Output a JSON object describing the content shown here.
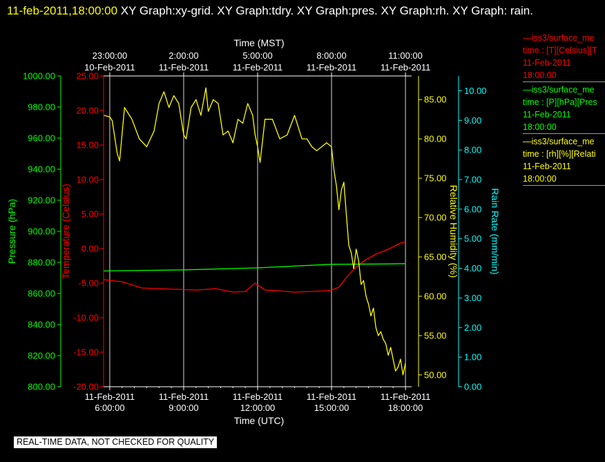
{
  "header": {
    "timestamp": "11-feb-2011,18:00:00",
    "rest": "  XY Graph:xy-grid.  XY Graph:tdry.  XY Graph:pres.  XY Graph:rh.  XY Graph: rain."
  },
  "notice": "REAL-TIME DATA, NOT CHECKED FOR QUALITY",
  "legend": [
    {
      "line1": "—iss3/surface_me",
      "line2": "time : [T][Celsius][T",
      "date": "11-Feb-2011",
      "time": "18:00:00",
      "color": "#ff0000"
    },
    {
      "line1": "—iss3/surface_me",
      "line2": "time : [P][hPa][Pres",
      "date": "11-Feb-2011",
      "time": "18:00:00",
      "color": "#00ff00"
    },
    {
      "line1": "—iss3/surface_me",
      "line2": "time : [rh][%][Relati",
      "date": "11-Feb-2011",
      "time": "18:00:00",
      "color": "#ffff00"
    }
  ],
  "colors": {
    "temperature": "#ff0000",
    "pressure": "#00ff00",
    "humidity": "#ffff00",
    "rain": "#00ffff",
    "grid": "#ffffff"
  },
  "chart_data": {
    "type": "line",
    "x_bottom": {
      "label": "Time (UTC)",
      "range_hours_utc": [
        5.75,
        18.25
      ],
      "ticks": [
        {
          "value": 6,
          "date": "11-Feb-2011",
          "time": "6:00:00"
        },
        {
          "value": 9,
          "date": "11-Feb-2011",
          "time": "9:00:00"
        },
        {
          "value": 12,
          "date": "11-Feb-2011",
          "time": "12:00:00"
        },
        {
          "value": 15,
          "date": "11-Feb-2011",
          "time": "15:00:00"
        },
        {
          "value": 18,
          "date": "11-Feb-2011",
          "time": "18:00:00"
        }
      ]
    },
    "x_top": {
      "label": "Time (MST)",
      "ticks": [
        {
          "value": 6,
          "time": "23:00:00",
          "date": "10-Feb-2011"
        },
        {
          "value": 9,
          "time": "2:00:00",
          "date": "11-Feb-2011"
        },
        {
          "value": 12,
          "time": "5:00:00",
          "date": "11-Feb-2011"
        },
        {
          "value": 15,
          "time": "8:00:00",
          "date": "11-Feb-2011"
        },
        {
          "value": 18,
          "time": "11:00:00",
          "date": "11-Feb-2011"
        }
      ]
    },
    "axes": {
      "pressure": {
        "label": "Pressure (hPa)",
        "range": [
          800,
          1000
        ],
        "ticks": [
          "800.00",
          "820.00",
          "840.00",
          "860.00",
          "880.00",
          "900.00",
          "920.00",
          "940.00",
          "960.00",
          "980.00",
          "1000.00"
        ]
      },
      "temperature": {
        "label": "Temperature (Celsius)",
        "range": [
          -20,
          25
        ],
        "ticks": [
          "-20.00",
          "-15.00",
          "-10.00",
          "-5.00",
          "0.00",
          "5.00",
          "10.00",
          "15.00",
          "20.00",
          "25.00"
        ]
      },
      "humidity": {
        "label": "Relative Humidity (%)",
        "range": [
          48.5,
          88
        ],
        "ticks": [
          "50.00",
          "55.00",
          "60.00",
          "65.00",
          "70.00",
          "75.00",
          "80.00",
          "85.00"
        ]
      },
      "rain": {
        "label": "Rain Rate (mm/min)",
        "range": [
          0,
          10.5
        ],
        "ticks": [
          "0.00",
          "1.00",
          "2.00",
          "3.00",
          "4.00",
          "5.00",
          "6.00",
          "7.00",
          "8.00",
          "9.00",
          "10.00"
        ]
      }
    },
    "grid": true,
    "series": [
      {
        "axis": "temperature",
        "x": [
          5.75,
          6.5,
          7.3,
          8.0,
          8.8,
          9.5,
          10.3,
          11.0,
          11.5,
          11.9,
          12.3,
          12.8,
          13.5,
          14.2,
          14.8,
          15.0,
          15.3,
          15.6,
          15.9,
          16.3,
          16.8,
          17.3,
          17.8,
          18.0
        ],
        "y": [
          -4.5,
          -4.8,
          -5.7,
          -5.8,
          -5.9,
          -6.0,
          -5.8,
          -6.3,
          -6.2,
          -5.0,
          -6.0,
          -6.1,
          -6.3,
          -6.2,
          -6.1,
          -6.0,
          -5.6,
          -4.2,
          -3.0,
          -1.8,
          -0.8,
          -0.1,
          0.8,
          1.0
        ]
      },
      {
        "axis": "pressure",
        "x": [
          5.75,
          9.0,
          12.0,
          15.0,
          17.0,
          18.0
        ],
        "y": [
          874.5,
          875.2,
          876.5,
          878.8,
          879.0,
          879.2
        ]
      },
      {
        "axis": "humidity",
        "x": [
          5.75,
          6.0,
          6.1,
          6.3,
          6.4,
          6.6,
          6.9,
          7.2,
          7.5,
          7.8,
          8.0,
          8.2,
          8.4,
          8.6,
          8.8,
          9.0,
          9.1,
          9.3,
          9.5,
          9.7,
          9.9,
          10.0,
          10.2,
          10.4,
          10.6,
          10.8,
          11.0,
          11.2,
          11.4,
          11.6,
          11.8,
          11.9,
          12.0,
          12.1,
          12.3,
          12.6,
          12.9,
          13.2,
          13.5,
          13.8,
          14.0,
          14.2,
          14.4,
          14.6,
          14.8,
          15.0,
          15.1,
          15.2,
          15.3,
          15.4,
          15.5,
          15.6,
          15.7,
          15.8,
          15.9,
          16.0,
          16.1,
          16.2,
          16.3,
          16.4,
          16.5,
          16.6,
          16.7,
          16.8,
          16.9,
          17.0,
          17.1,
          17.2,
          17.3,
          17.4,
          17.5,
          17.6,
          17.7,
          17.8,
          17.9,
          18.0
        ],
        "y": [
          83.0,
          82.8,
          82.3,
          78.2,
          77.2,
          84.0,
          82.5,
          80.0,
          79.0,
          81.0,
          84.5,
          86.0,
          84.0,
          85.5,
          84.5,
          80.5,
          80.0,
          84.0,
          85.0,
          83.0,
          86.5,
          83.5,
          85.0,
          84.5,
          80.5,
          81.0,
          79.5,
          82.5,
          82.0,
          84.5,
          83.0,
          80.5,
          79.0,
          77.0,
          82.5,
          82.5,
          80.0,
          80.5,
          83.0,
          80.0,
          80.0,
          79.0,
          78.5,
          79.0,
          79.5,
          79.0,
          76.0,
          74.0,
          71.0,
          73.5,
          74.5,
          70.5,
          66.5,
          65.5,
          63.5,
          66.0,
          64.5,
          61.5,
          62.0,
          60.0,
          59.0,
          57.5,
          58.5,
          56.0,
          55.0,
          55.5,
          54.5,
          54.0,
          52.5,
          53.5,
          52.0,
          50.5,
          51.0,
          52.0,
          50.0,
          51.5
        ]
      }
    ]
  }
}
